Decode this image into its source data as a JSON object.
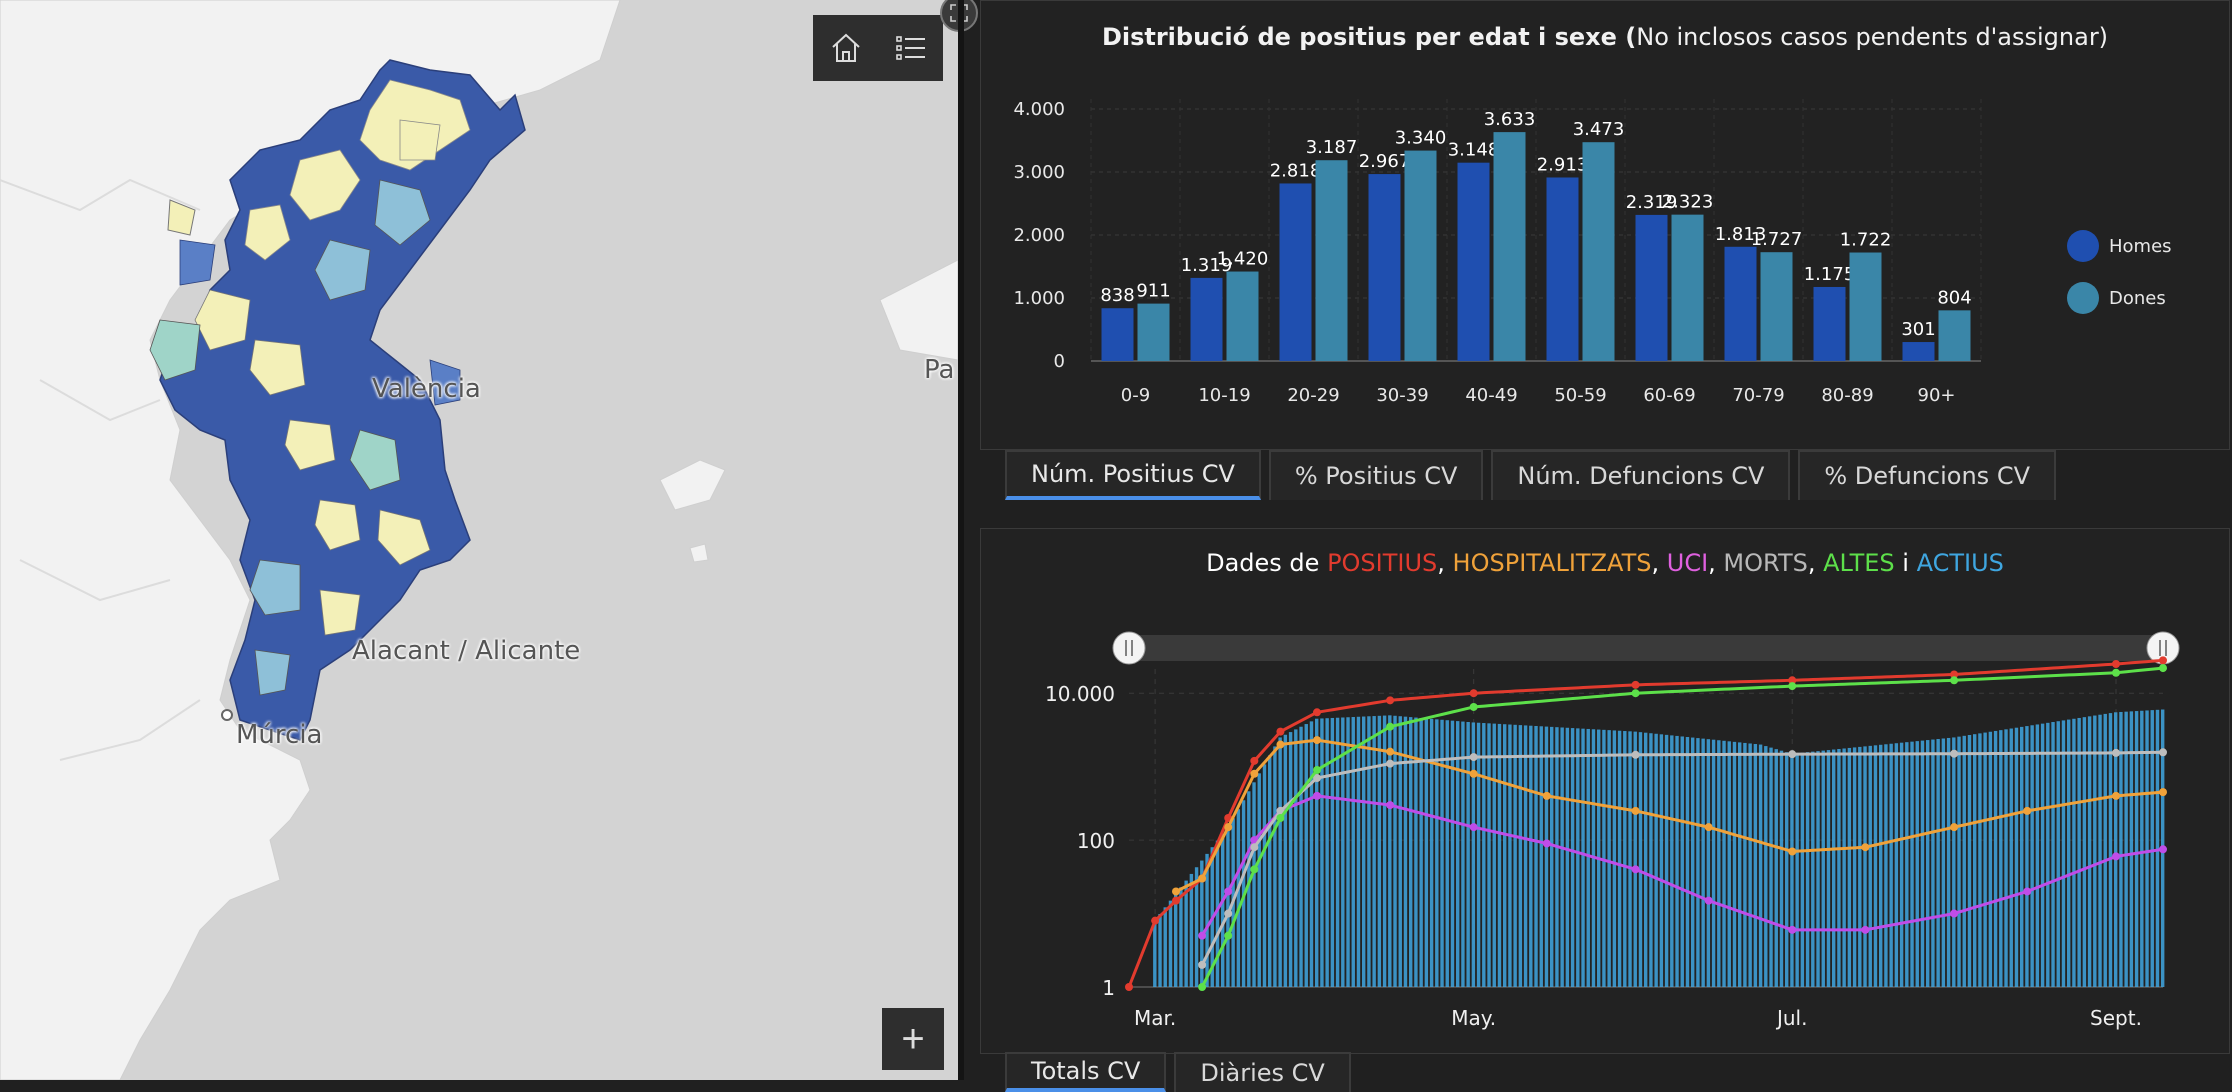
{
  "map": {
    "labels": {
      "valencia": "València",
      "alicante": "Alacant / Alicante",
      "murcia": "Múrcia",
      "palma": "Pa"
    },
    "home_icon": "home-icon",
    "legend_icon": "list-icon",
    "zoom_in_label": "+",
    "expand_icon": "expand-icon"
  },
  "age_panel": {
    "title_bold": "Distribució de positius per edat i sexe (",
    "title_rest": "No inclosos casos pendents d'assignar)",
    "tabs": [
      "Núm. Positius CV",
      "% Positius CV",
      "Núm. Defuncions CV",
      "% Defuncions CV"
    ],
    "active_tab": 0
  },
  "timeseries_panel": {
    "title_parts": [
      {
        "text": "Dades de ",
        "color": "#ffffff"
      },
      {
        "text": "POSITIUS",
        "color": "#e23b2e"
      },
      {
        "text": ", ",
        "color": "#ffffff"
      },
      {
        "text": "HOSPITALITZATS",
        "color": "#f0a23a"
      },
      {
        "text": ", ",
        "color": "#ffffff"
      },
      {
        "text": "UCI",
        "color": "#e060e0"
      },
      {
        "text": ", ",
        "color": "#ffffff"
      },
      {
        "text": "MORTS",
        "color": "#b8b8b8"
      },
      {
        "text": ", ",
        "color": "#ffffff"
      },
      {
        "text": "ALTES",
        "color": "#5de04a"
      },
      {
        "text": " i ",
        "color": "#ffffff"
      },
      {
        "text": "ACTIUS",
        "color": "#3fa6e0"
      }
    ],
    "tabs": [
      "Totals CV",
      "Diàries CV"
    ],
    "active_tab": 0
  },
  "chart_data": [
    {
      "type": "bar",
      "categories": [
        "0-9",
        "10-19",
        "20-29",
        "30-39",
        "40-49",
        "50-59",
        "60-69",
        "70-79",
        "80-89",
        "90+"
      ],
      "series": [
        {
          "name": "Homes",
          "color": "#1f4fb0",
          "values": [
            838,
            1319,
            2818,
            2967,
            3148,
            2913,
            2319,
            1813,
            1175,
            301
          ],
          "labels": [
            "838",
            "1.319",
            "2.818",
            "2.967",
            "3.148",
            "2.913",
            "2.319",
            "1.813",
            "1.175",
            "301"
          ]
        },
        {
          "name": "Dones",
          "color": "#3a86a8",
          "values": [
            911,
            1420,
            3187,
            3340,
            3633,
            3473,
            2323,
            1727,
            1722,
            804
          ],
          "labels": [
            "911",
            "1.420",
            "3.187",
            "3.340",
            "3.633",
            "3.473",
            "2.323",
            "1.727",
            "1.722",
            "804"
          ]
        }
      ],
      "ylim": [
        0,
        4000
      ],
      "yticks": [
        0,
        1000,
        2000,
        3000,
        4000
      ],
      "ytick_labels": [
        "0",
        "1.000",
        "2.000",
        "3.000",
        "4.000"
      ],
      "grid": true,
      "legend": "right"
    },
    {
      "type": "line",
      "y_scale": "log",
      "ylim": [
        1,
        40000
      ],
      "yticks": [
        1,
        100,
        10000
      ],
      "ytick_labels": [
        "1",
        "100",
        "10.000"
      ],
      "x_range": [
        "2020-02-25",
        "2020-09-10"
      ],
      "xticks": [
        "2020-03-01",
        "2020-05-01",
        "2020-07-01",
        "2020-09-01"
      ],
      "xtick_labels": [
        "Mar.",
        "May.",
        "Jul.",
        "Sept."
      ],
      "grid": true,
      "series": [
        {
          "name": "POSITIUS",
          "color": "#e23b2e",
          "type": "line",
          "x": [
            "2020-02-25",
            "2020-03-01",
            "2020-03-05",
            "2020-03-10",
            "2020-03-15",
            "2020-03-20",
            "2020-03-25",
            "2020-04-01",
            "2020-04-15",
            "2020-05-01",
            "2020-06-01",
            "2020-07-01",
            "2020-08-01",
            "2020-09-01",
            "2020-09-10"
          ],
          "y": [
            1,
            8,
            15,
            30,
            200,
            1200,
            3000,
            5500,
            8000,
            10000,
            13000,
            15000,
            18000,
            25000,
            28000
          ]
        },
        {
          "name": "HOSPITALITZATS",
          "color": "#f0a23a",
          "type": "line",
          "x": [
            "2020-03-05",
            "2020-03-10",
            "2020-03-15",
            "2020-03-20",
            "2020-03-25",
            "2020-04-01",
            "2020-04-15",
            "2020-05-01",
            "2020-05-15",
            "2020-06-01",
            "2020-06-15",
            "2020-07-01",
            "2020-07-15",
            "2020-08-01",
            "2020-08-15",
            "2020-09-01",
            "2020-09-10"
          ],
          "y": [
            20,
            30,
            150,
            800,
            2000,
            2300,
            1600,
            800,
            400,
            250,
            150,
            70,
            80,
            150,
            250,
            400,
            450
          ]
        },
        {
          "name": "UCI",
          "color": "#c04ce8",
          "type": "line",
          "x": [
            "2020-03-10",
            "2020-03-15",
            "2020-03-20",
            "2020-03-25",
            "2020-04-01",
            "2020-04-15",
            "2020-05-01",
            "2020-05-15",
            "2020-06-01",
            "2020-06-15",
            "2020-07-01",
            "2020-07-15",
            "2020-08-01",
            "2020-08-15",
            "2020-09-01",
            "2020-09-10"
          ],
          "y": [
            5,
            20,
            100,
            250,
            400,
            300,
            150,
            90,
            40,
            15,
            6,
            6,
            10,
            20,
            60,
            75
          ]
        },
        {
          "name": "MORTS",
          "color": "#bdbdbd",
          "type": "line",
          "x": [
            "2020-03-10",
            "2020-03-15",
            "2020-03-20",
            "2020-03-25",
            "2020-04-01",
            "2020-04-15",
            "2020-05-01",
            "2020-06-01",
            "2020-07-01",
            "2020-08-01",
            "2020-09-01",
            "2020-09-10"
          ],
          "y": [
            2,
            10,
            80,
            250,
            700,
            1100,
            1350,
            1450,
            1480,
            1500,
            1540,
            1570
          ]
        },
        {
          "name": "ALTES",
          "color": "#5de04a",
          "type": "line",
          "x": [
            "2020-03-10",
            "2020-03-15",
            "2020-03-20",
            "2020-03-25",
            "2020-04-01",
            "2020-04-15",
            "2020-05-01",
            "2020-06-01",
            "2020-07-01",
            "2020-08-01",
            "2020-09-01",
            "2020-09-10"
          ],
          "y": [
            1,
            5,
            40,
            200,
            900,
            3500,
            6500,
            10000,
            12500,
            15000,
            19000,
            22000
          ]
        },
        {
          "name": "ACTIUS",
          "color": "#3fa6e0",
          "type": "bar",
          "x": [
            "2020-03-01",
            "2020-03-15",
            "2020-03-25",
            "2020-04-01",
            "2020-04-15",
            "2020-05-01",
            "2020-06-01",
            "2020-06-25",
            "2020-07-01",
            "2020-08-01",
            "2020-09-01",
            "2020-09-10"
          ],
          "y": [
            8,
            150,
            2500,
            4500,
            5000,
            4000,
            3000,
            2000,
            1500,
            2500,
            5500,
            6000
          ]
        }
      ]
    }
  ]
}
